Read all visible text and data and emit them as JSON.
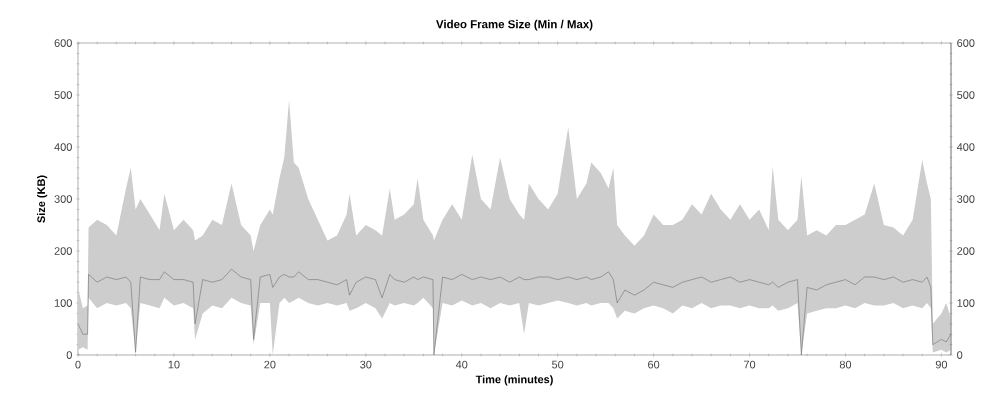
{
  "chart_data": {
    "type": "line",
    "title": "Video Frame Size (Min / Max)",
    "xlabel": "Time (minutes)",
    "ylabel": "Size (KB)",
    "xlim": [
      0,
      91
    ],
    "xticks": [
      0,
      10,
      20,
      30,
      40,
      50,
      60,
      70,
      80,
      90
    ],
    "ylim": [
      0,
      600
    ],
    "yticks": [
      0,
      100,
      200,
      300,
      400,
      500,
      600
    ],
    "y2lim": [
      0,
      600
    ],
    "y2ticks": [
      0,
      100,
      200,
      300,
      400,
      500,
      600
    ],
    "grid": false,
    "legend": false,
    "marker": "none",
    "line_style": "solid",
    "series": [
      {
        "color": "#707070",
        "x": [
          0,
          0.5,
          1.0,
          1.1,
          2,
          3,
          4,
          5,
          5.5,
          6,
          6.5,
          7.5,
          8.5,
          9,
          10,
          11,
          12,
          12.2,
          13,
          14,
          15,
          16,
          17,
          18,
          18.3,
          19,
          20,
          20.3,
          21,
          21.5,
          22,
          22.5,
          23,
          24,
          25,
          26,
          27,
          28,
          28.3,
          29,
          30,
          31,
          31.7,
          32.5,
          33,
          34,
          35,
          35.4,
          36,
          37,
          37.1,
          38,
          39,
          40,
          41.1,
          42,
          43,
          44,
          45,
          46,
          46.5,
          47,
          48,
          49,
          50,
          51.1,
          52,
          53,
          53.5,
          54.5,
          55.3,
          55.8,
          56.2,
          57,
          58,
          59,
          60,
          61,
          62,
          63,
          64,
          65,
          66,
          67,
          68,
          69,
          70,
          71,
          72,
          72.4,
          73,
          74,
          75,
          75.4,
          76,
          77,
          78,
          79,
          80,
          81,
          82,
          83,
          84,
          85,
          86,
          87,
          88,
          88.5,
          88.9,
          89.1,
          90,
          90.5,
          91
        ],
        "values": [
          60,
          40,
          40,
          155,
          140,
          150,
          145,
          150,
          140,
          5,
          150,
          145,
          145,
          160,
          145,
          145,
          140,
          60,
          145,
          140,
          145,
          165,
          150,
          145,
          30,
          150,
          155,
          130,
          150,
          155,
          150,
          150,
          160,
          145,
          145,
          140,
          135,
          145,
          115,
          140,
          150,
          145,
          110,
          155,
          145,
          140,
          150,
          145,
          150,
          145,
          0,
          150,
          145,
          155,
          145,
          150,
          145,
          150,
          140,
          150,
          145,
          145,
          150,
          150,
          145,
          150,
          145,
          150,
          145,
          150,
          160,
          145,
          100,
          125,
          115,
          125,
          140,
          135,
          130,
          140,
          145,
          150,
          140,
          145,
          150,
          140,
          145,
          140,
          135,
          140,
          130,
          140,
          145,
          0,
          130,
          125,
          135,
          140,
          145,
          135,
          150,
          150,
          145,
          150,
          140,
          145,
          140,
          150,
          130,
          20,
          30,
          25,
          40
        ],
        "lower": [
          10,
          15,
          10,
          110,
          90,
          100,
          95,
          100,
          90,
          5,
          100,
          95,
          90,
          110,
          95,
          100,
          90,
          30,
          80,
          95,
          90,
          110,
          100,
          95,
          20,
          100,
          100,
          0,
          100,
          110,
          100,
          105,
          110,
          100,
          95,
          100,
          95,
          100,
          85,
          90,
          100,
          90,
          70,
          100,
          95,
          100,
          95,
          100,
          110,
          90,
          0,
          100,
          95,
          105,
          95,
          100,
          90,
          100,
          95,
          100,
          40,
          100,
          95,
          100,
          105,
          100,
          95,
          100,
          95,
          100,
          100,
          90,
          70,
          85,
          80,
          90,
          95,
          90,
          80,
          95,
          90,
          100,
          90,
          95,
          95,
          90,
          95,
          90,
          90,
          95,
          85,
          90,
          100,
          0,
          80,
          85,
          90,
          90,
          95,
          90,
          100,
          95,
          95,
          100,
          90,
          95,
          90,
          100,
          90,
          5,
          10,
          5,
          10
        ],
        "upper": [
          130,
          90,
          95,
          245,
          260,
          250,
          230,
          320,
          360,
          280,
          300,
          270,
          240,
          310,
          240,
          260,
          240,
          220,
          230,
          260,
          250,
          330,
          250,
          230,
          200,
          250,
          280,
          270,
          340,
          380,
          490,
          370,
          360,
          300,
          260,
          220,
          230,
          270,
          310,
          230,
          250,
          240,
          230,
          320,
          260,
          270,
          290,
          340,
          260,
          230,
          220,
          260,
          290,
          260,
          385,
          300,
          280,
          380,
          300,
          270,
          260,
          330,
          300,
          280,
          310,
          438,
          300,
          330,
          370,
          350,
          320,
          360,
          250,
          230,
          210,
          230,
          270,
          250,
          250,
          260,
          290,
          270,
          310,
          280,
          260,
          290,
          260,
          280,
          240,
          363,
          260,
          240,
          260,
          344,
          230,
          240,
          230,
          250,
          250,
          260,
          270,
          330,
          250,
          245,
          230,
          260,
          375,
          330,
          300,
          60,
          80,
          100,
          70
        ]
      }
    ]
  }
}
